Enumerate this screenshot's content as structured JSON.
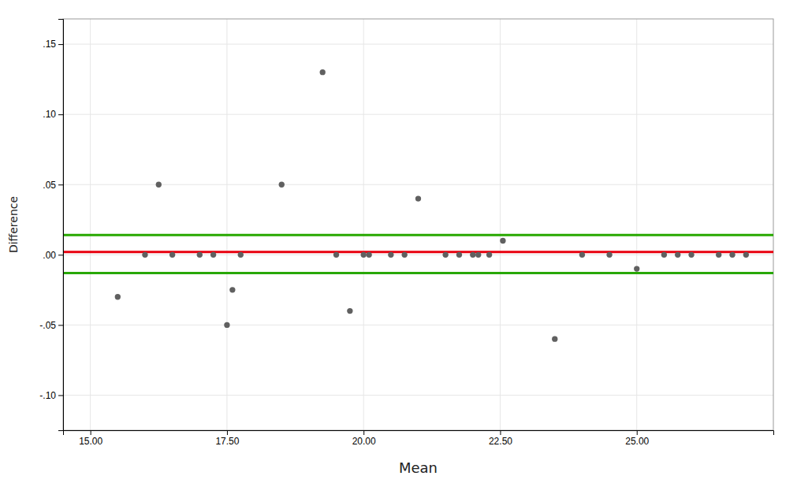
{
  "chart_data": {
    "type": "scatter",
    "xlabel": "Mean",
    "ylabel": "Difference",
    "x": [
      15.5,
      16.0,
      16.25,
      16.5,
      17.0,
      17.25,
      17.5,
      17.6,
      17.75,
      18.5,
      19.25,
      19.5,
      19.75,
      20.0,
      20.1,
      20.5,
      20.75,
      21.0,
      21.5,
      21.75,
      22.0,
      22.1,
      22.3,
      22.55,
      23.5,
      24.0,
      24.5,
      25.0,
      25.5,
      25.75,
      26.0,
      26.5,
      26.75,
      27.0
    ],
    "values": [
      -0.03,
      0.0,
      0.05,
      0.0,
      0.0,
      0.0,
      -0.05,
      -0.025,
      0.0,
      0.05,
      0.13,
      0.0,
      -0.04,
      0.0,
      0.0,
      0.0,
      0.0,
      0.04,
      0.0,
      0.0,
      0.0,
      0.0,
      0.0,
      0.01,
      -0.06,
      0.0,
      0.0,
      -0.01,
      0.0,
      0.0,
      0.0,
      0.0,
      0.0,
      0.0
    ],
    "color": "#606060",
    "marker": "circle",
    "reference_lines": [
      {
        "value": 0.002,
        "color": "#e8000e"
      },
      {
        "value": 0.014,
        "color": "#28a800"
      },
      {
        "value": -0.013,
        "color": "#28a800"
      }
    ],
    "xlim": [
      14.5,
      27.5
    ],
    "ylim": [
      -0.125,
      0.168
    ],
    "xticks": [
      {
        "value": 15.0,
        "label": "15.00"
      },
      {
        "value": 17.5,
        "label": "17.50"
      },
      {
        "value": 20.0,
        "label": "20.00"
      },
      {
        "value": 22.5,
        "label": "22.50"
      },
      {
        "value": 25.0,
        "label": "25.00"
      }
    ],
    "yticks": [
      {
        "value": -0.1,
        "label": "-.10"
      },
      {
        "value": -0.05,
        "label": "-.05"
      },
      {
        "value": 0.0,
        "label": ".00"
      },
      {
        "value": 0.05,
        "label": ".05"
      },
      {
        "value": 0.1,
        "label": ".10"
      },
      {
        "value": 0.15,
        "label": ".15"
      }
    ],
    "grid": true
  }
}
